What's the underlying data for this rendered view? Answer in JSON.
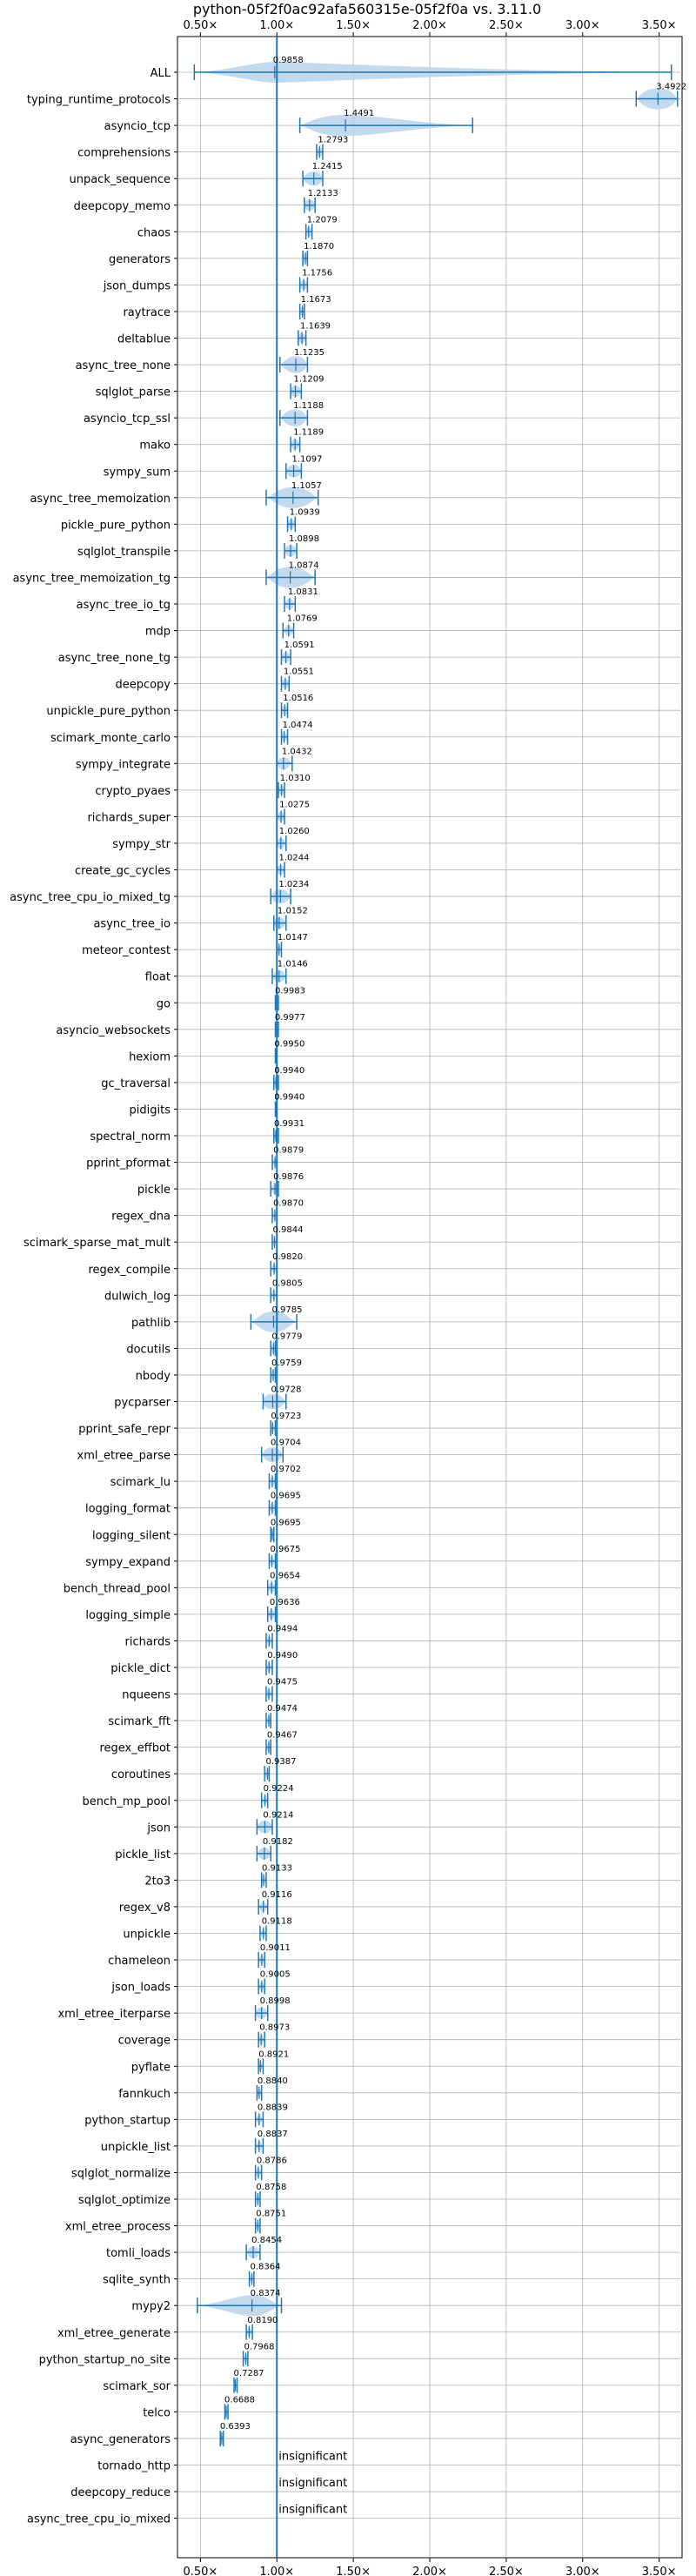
{
  "chart_data": {
    "type": "violin",
    "title": "python-05f2f0ac92afa560315e-05f2f0a vs. 3.11.0",
    "xlim": [
      0.35,
      3.65
    ],
    "xticks": [
      0.5,
      1.0,
      1.5,
      2.0,
      2.5,
      3.0,
      3.5
    ],
    "xtick_labels": [
      "0.50×",
      "1.00×",
      "1.50×",
      "2.00×",
      "2.50×",
      "3.00×",
      "3.50×"
    ],
    "grid": true,
    "reference_line": 1.0,
    "accent_color": "#1f77b4",
    "violin_fill": "#b9d2ea",
    "rows": [
      {
        "name": "ALL",
        "value": 0.9858,
        "label": "0.9858",
        "lo": 0.46,
        "hi": 3.58,
        "spread": 0.12
      },
      {
        "name": "typing_runtime_protocols",
        "value": 3.4922,
        "label": "3.4922",
        "lo": 3.35,
        "hi": 3.62,
        "spread": 0.1
      },
      {
        "name": "asyncio_tcp",
        "value": 1.4491,
        "label": "1.4491",
        "lo": 1.15,
        "hi": 2.28,
        "spread": 0.2
      },
      {
        "name": "comprehensions",
        "value": 1.2793,
        "label": "1.2793",
        "lo": 1.26,
        "hi": 1.3,
        "spread": 0.02
      },
      {
        "name": "unpack_sequence",
        "value": 1.2415,
        "label": "1.2415",
        "lo": 1.17,
        "hi": 1.3,
        "spread": 0.05
      },
      {
        "name": "deepcopy_memo",
        "value": 1.2133,
        "label": "1.2133",
        "lo": 1.18,
        "hi": 1.25,
        "spread": 0.03
      },
      {
        "name": "chaos",
        "value": 1.2079,
        "label": "1.2079",
        "lo": 1.19,
        "hi": 1.23,
        "spread": 0.02
      },
      {
        "name": "generators",
        "value": 1.187,
        "label": "1.1870",
        "lo": 1.17,
        "hi": 1.2,
        "spread": 0.02
      },
      {
        "name": "json_dumps",
        "value": 1.1756,
        "label": "1.1756",
        "lo": 1.15,
        "hi": 1.2,
        "spread": 0.02
      },
      {
        "name": "raytrace",
        "value": 1.1673,
        "label": "1.1673",
        "lo": 1.15,
        "hi": 1.18,
        "spread": 0.015
      },
      {
        "name": "deltablue",
        "value": 1.1639,
        "label": "1.1639",
        "lo": 1.14,
        "hi": 1.19,
        "spread": 0.02
      },
      {
        "name": "async_tree_none",
        "value": 1.1235,
        "label": "1.1235",
        "lo": 1.02,
        "hi": 1.2,
        "spread": 0.06
      },
      {
        "name": "sqlglot_parse",
        "value": 1.1209,
        "label": "1.1209",
        "lo": 1.09,
        "hi": 1.16,
        "spread": 0.03
      },
      {
        "name": "asyncio_tcp_ssl",
        "value": 1.1188,
        "label": "1.1188",
        "lo": 1.02,
        "hi": 1.2,
        "spread": 0.06
      },
      {
        "name": "mako",
        "value": 1.1189,
        "label": "1.1189",
        "lo": 1.09,
        "hi": 1.15,
        "spread": 0.02
      },
      {
        "name": "sympy_sum",
        "value": 1.1097,
        "label": "1.1097",
        "lo": 1.06,
        "hi": 1.16,
        "spread": 0.04
      },
      {
        "name": "async_tree_memoization",
        "value": 1.1057,
        "label": "1.1057",
        "lo": 0.93,
        "hi": 1.27,
        "spread": 0.1
      },
      {
        "name": "pickle_pure_python",
        "value": 1.0939,
        "label": "1.0939",
        "lo": 1.07,
        "hi": 1.12,
        "spread": 0.02
      },
      {
        "name": "sqlglot_transpile",
        "value": 1.0898,
        "label": "1.0898",
        "lo": 1.05,
        "hi": 1.13,
        "spread": 0.03
      },
      {
        "name": "async_tree_memoization_tg",
        "value": 1.0874,
        "label": "1.0874",
        "lo": 0.93,
        "hi": 1.25,
        "spread": 0.1
      },
      {
        "name": "async_tree_io_tg",
        "value": 1.0831,
        "label": "1.0831",
        "lo": 1.05,
        "hi": 1.12,
        "spread": 0.02
      },
      {
        "name": "mdp",
        "value": 1.0769,
        "label": "1.0769",
        "lo": 1.04,
        "hi": 1.11,
        "spread": 0.02
      },
      {
        "name": "async_tree_none_tg",
        "value": 1.0591,
        "label": "1.0591",
        "lo": 1.03,
        "hi": 1.09,
        "spread": 0.02
      },
      {
        "name": "deepcopy",
        "value": 1.0551,
        "label": "1.0551",
        "lo": 1.03,
        "hi": 1.08,
        "spread": 0.02
      },
      {
        "name": "unpickle_pure_python",
        "value": 1.0516,
        "label": "1.0516",
        "lo": 1.03,
        "hi": 1.07,
        "spread": 0.015
      },
      {
        "name": "scimark_monte_carlo",
        "value": 1.0474,
        "label": "1.0474",
        "lo": 1.03,
        "hi": 1.07,
        "spread": 0.015
      },
      {
        "name": "sympy_integrate",
        "value": 1.0432,
        "label": "1.0432",
        "lo": 1.0,
        "hi": 1.1,
        "spread": 0.03
      },
      {
        "name": "crypto_pyaes",
        "value": 1.031,
        "label": "1.0310",
        "lo": 1.01,
        "hi": 1.05,
        "spread": 0.015
      },
      {
        "name": "richards_super",
        "value": 1.0275,
        "label": "1.0275",
        "lo": 1.0,
        "hi": 1.05,
        "spread": 0.02
      },
      {
        "name": "sympy_str",
        "value": 1.026,
        "label": "1.0260",
        "lo": 1.0,
        "hi": 1.06,
        "spread": 0.02
      },
      {
        "name": "create_gc_cycles",
        "value": 1.0244,
        "label": "1.0244",
        "lo": 1.0,
        "hi": 1.05,
        "spread": 0.02
      },
      {
        "name": "async_tree_cpu_io_mixed_tg",
        "value": 1.0234,
        "label": "1.0234",
        "lo": 0.96,
        "hi": 1.09,
        "spread": 0.05
      },
      {
        "name": "async_tree_io",
        "value": 1.0152,
        "label": "1.0152",
        "lo": 0.98,
        "hi": 1.06,
        "spread": 0.03
      },
      {
        "name": "meteor_contest",
        "value": 1.0147,
        "label": "1.0147",
        "lo": 1.0,
        "hi": 1.03,
        "spread": 0.01
      },
      {
        "name": "float",
        "value": 1.0146,
        "label": "1.0146",
        "lo": 0.97,
        "hi": 1.06,
        "spread": 0.03
      },
      {
        "name": "go",
        "value": 0.9983,
        "label": "0.9983",
        "lo": 0.99,
        "hi": 1.01,
        "spread": 0.01
      },
      {
        "name": "asyncio_websockets",
        "value": 0.9977,
        "label": "0.9977",
        "lo": 0.99,
        "hi": 1.01,
        "spread": 0.01
      },
      {
        "name": "hexiom",
        "value": 0.995,
        "label": "0.9950",
        "lo": 0.99,
        "hi": 1.0,
        "spread": 0.005
      },
      {
        "name": "gc_traversal",
        "value": 0.994,
        "label": "0.9940",
        "lo": 0.98,
        "hi": 1.01,
        "spread": 0.01
      },
      {
        "name": "pidigits",
        "value": 0.994,
        "label": "0.9940",
        "lo": 0.99,
        "hi": 1.0,
        "spread": 0.005
      },
      {
        "name": "spectral_norm",
        "value": 0.9931,
        "label": "0.9931",
        "lo": 0.98,
        "hi": 1.01,
        "spread": 0.01
      },
      {
        "name": "pprint_pformat",
        "value": 0.9879,
        "label": "0.9879",
        "lo": 0.97,
        "hi": 1.0,
        "spread": 0.01
      },
      {
        "name": "pickle",
        "value": 0.9876,
        "label": "0.9876",
        "lo": 0.96,
        "hi": 1.01,
        "spread": 0.02
      },
      {
        "name": "regex_dna",
        "value": 0.987,
        "label": "0.9870",
        "lo": 0.97,
        "hi": 1.0,
        "spread": 0.01
      },
      {
        "name": "scimark_sparse_mat_mult",
        "value": 0.9844,
        "label": "0.9844",
        "lo": 0.97,
        "hi": 1.0,
        "spread": 0.01
      },
      {
        "name": "regex_compile",
        "value": 0.982,
        "label": "0.9820",
        "lo": 0.96,
        "hi": 1.0,
        "spread": 0.01
      },
      {
        "name": "dulwich_log",
        "value": 0.9805,
        "label": "0.9805",
        "lo": 0.96,
        "hi": 1.0,
        "spread": 0.01
      },
      {
        "name": "pathlib",
        "value": 0.9785,
        "label": "0.9785",
        "lo": 0.83,
        "hi": 1.13,
        "spread": 0.08
      },
      {
        "name": "docutils",
        "value": 0.9779,
        "label": "0.9779",
        "lo": 0.96,
        "hi": 0.99,
        "spread": 0.01
      },
      {
        "name": "nbody",
        "value": 0.9759,
        "label": "0.9759",
        "lo": 0.96,
        "hi": 0.99,
        "spread": 0.01
      },
      {
        "name": "pycparser",
        "value": 0.9728,
        "label": "0.9728",
        "lo": 0.91,
        "hi": 1.06,
        "spread": 0.06
      },
      {
        "name": "pprint_safe_repr",
        "value": 0.9723,
        "label": "0.9723",
        "lo": 0.96,
        "hi": 0.99,
        "spread": 0.01
      },
      {
        "name": "xml_etree_parse",
        "value": 0.9704,
        "label": "0.9704",
        "lo": 0.9,
        "hi": 1.04,
        "spread": 0.05
      },
      {
        "name": "scimark_lu",
        "value": 0.9702,
        "label": "0.9702",
        "lo": 0.95,
        "hi": 0.99,
        "spread": 0.01
      },
      {
        "name": "logging_format",
        "value": 0.9695,
        "label": "0.9695",
        "lo": 0.95,
        "hi": 0.99,
        "spread": 0.01
      },
      {
        "name": "logging_silent",
        "value": 0.9695,
        "label": "0.9695",
        "lo": 0.96,
        "hi": 0.98,
        "spread": 0.005
      },
      {
        "name": "sympy_expand",
        "value": 0.9675,
        "label": "0.9675",
        "lo": 0.95,
        "hi": 0.99,
        "spread": 0.01
      },
      {
        "name": "bench_thread_pool",
        "value": 0.9654,
        "label": "0.9654",
        "lo": 0.94,
        "hi": 0.99,
        "spread": 0.015
      },
      {
        "name": "logging_simple",
        "value": 0.9636,
        "label": "0.9636",
        "lo": 0.94,
        "hi": 0.99,
        "spread": 0.015
      },
      {
        "name": "richards",
        "value": 0.9494,
        "label": "0.9494",
        "lo": 0.93,
        "hi": 0.97,
        "spread": 0.01
      },
      {
        "name": "pickle_dict",
        "value": 0.949,
        "label": "0.9490",
        "lo": 0.93,
        "hi": 0.97,
        "spread": 0.01
      },
      {
        "name": "nqueens",
        "value": 0.9475,
        "label": "0.9475",
        "lo": 0.93,
        "hi": 0.97,
        "spread": 0.01
      },
      {
        "name": "scimark_fft",
        "value": 0.9474,
        "label": "0.9474",
        "lo": 0.93,
        "hi": 0.96,
        "spread": 0.01
      },
      {
        "name": "regex_effbot",
        "value": 0.9467,
        "label": "0.9467",
        "lo": 0.93,
        "hi": 0.96,
        "spread": 0.01
      },
      {
        "name": "coroutines",
        "value": 0.9387,
        "label": "0.9387",
        "lo": 0.92,
        "hi": 0.95,
        "spread": 0.01
      },
      {
        "name": "bench_mp_pool",
        "value": 0.9224,
        "label": "0.9224",
        "lo": 0.9,
        "hi": 0.94,
        "spread": 0.01
      },
      {
        "name": "json",
        "value": 0.9214,
        "label": "0.9214",
        "lo": 0.87,
        "hi": 0.97,
        "spread": 0.04
      },
      {
        "name": "pickle_list",
        "value": 0.9182,
        "label": "0.9182",
        "lo": 0.87,
        "hi": 0.96,
        "spread": 0.03
      },
      {
        "name": "2to3",
        "value": 0.9133,
        "label": "0.9133",
        "lo": 0.9,
        "hi": 0.93,
        "spread": 0.01
      },
      {
        "name": "regex_v8",
        "value": 0.9116,
        "label": "0.9116",
        "lo": 0.88,
        "hi": 0.94,
        "spread": 0.015
      },
      {
        "name": "unpickle",
        "value": 0.9118,
        "label": "0.9118",
        "lo": 0.89,
        "hi": 0.93,
        "spread": 0.01
      },
      {
        "name": "chameleon",
        "value": 0.9011,
        "label": "0.9011",
        "lo": 0.88,
        "hi": 0.92,
        "spread": 0.01
      },
      {
        "name": "json_loads",
        "value": 0.9005,
        "label": "0.9005",
        "lo": 0.88,
        "hi": 0.92,
        "spread": 0.01
      },
      {
        "name": "xml_etree_iterparse",
        "value": 0.8998,
        "label": "0.8998",
        "lo": 0.86,
        "hi": 0.94,
        "spread": 0.03
      },
      {
        "name": "coverage",
        "value": 0.8973,
        "label": "0.8973",
        "lo": 0.88,
        "hi": 0.92,
        "spread": 0.01
      },
      {
        "name": "pyflate",
        "value": 0.8921,
        "label": "0.8921",
        "lo": 0.88,
        "hi": 0.91,
        "spread": 0.01
      },
      {
        "name": "fannkuch",
        "value": 0.884,
        "label": "0.8840",
        "lo": 0.87,
        "hi": 0.9,
        "spread": 0.01
      },
      {
        "name": "python_startup",
        "value": 0.8839,
        "label": "0.8839",
        "lo": 0.86,
        "hi": 0.91,
        "spread": 0.01
      },
      {
        "name": "unpickle_list",
        "value": 0.8837,
        "label": "0.8837",
        "lo": 0.86,
        "hi": 0.91,
        "spread": 0.01
      },
      {
        "name": "sqlglot_normalize",
        "value": 0.8786,
        "label": "0.8786",
        "lo": 0.86,
        "hi": 0.9,
        "spread": 0.01
      },
      {
        "name": "sqlglot_optimize",
        "value": 0.8758,
        "label": "0.8758",
        "lo": 0.86,
        "hi": 0.89,
        "spread": 0.01
      },
      {
        "name": "xml_etree_process",
        "value": 0.8751,
        "label": "0.8751",
        "lo": 0.86,
        "hi": 0.89,
        "spread": 0.01
      },
      {
        "name": "tomli_loads",
        "value": 0.8454,
        "label": "0.8454",
        "lo": 0.8,
        "hi": 0.89,
        "spread": 0.03
      },
      {
        "name": "sqlite_synth",
        "value": 0.8364,
        "label": "0.8364",
        "lo": 0.82,
        "hi": 0.85,
        "spread": 0.01
      },
      {
        "name": "mypy2",
        "value": 0.8374,
        "label": "0.8374",
        "lo": 0.48,
        "hi": 1.03,
        "spread": 0.1
      },
      {
        "name": "xml_etree_generate",
        "value": 0.819,
        "label": "0.8190",
        "lo": 0.8,
        "hi": 0.84,
        "spread": 0.01
      },
      {
        "name": "python_startup_no_site",
        "value": 0.7968,
        "label": "0.7968",
        "lo": 0.78,
        "hi": 0.81,
        "spread": 0.01
      },
      {
        "name": "scimark_sor",
        "value": 0.7287,
        "label": "0.7287",
        "lo": 0.72,
        "hi": 0.74,
        "spread": 0.005
      },
      {
        "name": "telco",
        "value": 0.6688,
        "label": "0.6688",
        "lo": 0.66,
        "hi": 0.68,
        "spread": 0.005
      },
      {
        "name": "async_generators",
        "value": 0.6393,
        "label": "0.6393",
        "lo": 0.63,
        "hi": 0.65,
        "spread": 0.005
      },
      {
        "name": "tornado_http",
        "value": null,
        "label": "insignificant"
      },
      {
        "name": "deepcopy_reduce",
        "value": null,
        "label": "insignificant"
      },
      {
        "name": "async_tree_cpu_io_mixed",
        "value": null,
        "label": "insignificant"
      }
    ]
  }
}
